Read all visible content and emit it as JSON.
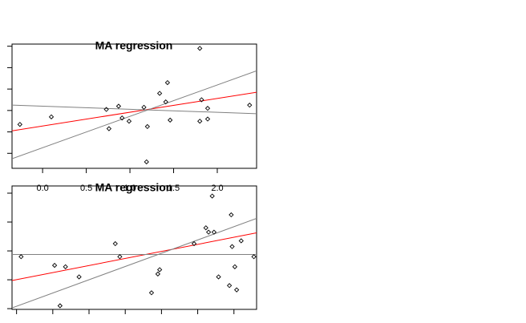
{
  "chart_data": [
    {
      "type": "scatter",
      "title": "MA regression",
      "xlabel": "",
      "ylabel": "",
      "xlim": [
        -0.35,
        2.45
      ],
      "ylim": [
        -0.27,
        0.31
      ],
      "x_ticks": [
        0.0,
        0.5,
        1.0,
        1.5,
        2.0
      ],
      "x_tick_labels": [
        "0.0",
        "0.5",
        "1.0",
        "1.5",
        "2.0"
      ],
      "y_ticks": [
        -0.2,
        -0.1,
        0.0,
        0.1,
        0.2,
        0.3
      ],
      "grid": false,
      "legend": "none",
      "points": {
        "x": [
          -0.26,
          0.1,
          0.73,
          0.76,
          0.87,
          0.91,
          0.99,
          1.16,
          1.2,
          1.19,
          1.34,
          1.41,
          1.43,
          1.46,
          1.8,
          1.82,
          1.8,
          1.89,
          1.89,
          2.37
        ],
        "y": [
          -0.065,
          -0.03,
          0.005,
          -0.085,
          0.02,
          -0.035,
          -0.05,
          0.015,
          -0.075,
          -0.24,
          0.08,
          0.04,
          0.13,
          -0.045,
          0.29,
          0.05,
          -0.05,
          0.01,
          -0.04,
          0.025
        ]
      },
      "lines": [
        {
          "color": "#ff0000",
          "x": [
            -0.35,
            2.45
          ],
          "y": [
            -0.095,
            0.085
          ]
        },
        {
          "color": "#808080",
          "x": [
            -0.35,
            2.45
          ],
          "y": [
            -0.225,
            0.185
          ]
        },
        {
          "color": "#808080",
          "x": [
            -0.35,
            2.45
          ],
          "y": [
            0.025,
            -0.015
          ]
        }
      ]
    },
    {
      "type": "scatter",
      "title": "MA regression",
      "xlabel": "",
      "ylabel": "",
      "xlim": [
        -0.25,
        2.45
      ],
      "ylim": [
        -0.405,
        0.45
      ],
      "x_ticks": [
        -0.2,
        0.2,
        0.6,
        1.0,
        1.4,
        1.8,
        2.2
      ],
      "x_tick_labels": [],
      "y_ticks": [
        -0.4,
        -0.2,
        0.0,
        0.2,
        0.4
      ],
      "grid": false,
      "legend": "none",
      "points": {
        "x": [
          -0.15,
          0.22,
          0.28,
          0.34,
          0.49,
          0.89,
          0.94,
          1.29,
          1.36,
          1.38,
          1.76,
          1.89,
          1.92,
          1.96,
          1.98,
          2.03,
          2.15,
          2.17,
          2.18,
          2.21,
          2.23,
          2.28,
          2.42
        ],
        "y": [
          -0.04,
          -0.1,
          -0.38,
          -0.11,
          -0.18,
          0.05,
          -0.04,
          -0.29,
          -0.16,
          -0.13,
          0.05,
          0.16,
          0.13,
          0.38,
          0.13,
          -0.18,
          -0.24,
          0.25,
          0.03,
          -0.11,
          -0.27,
          0.07,
          -0.04
        ]
      },
      "lines": [
        {
          "color": "#ff0000",
          "x": [
            -0.25,
            2.45
          ],
          "y": [
            -0.205,
            0.125
          ]
        },
        {
          "color": "#808080",
          "x": [
            -0.25,
            2.45
          ],
          "y": [
            -0.395,
            0.225
          ]
        },
        {
          "color": "#808080",
          "x": [
            -0.25,
            2.45
          ],
          "y": [
            -0.025,
            -0.025
          ]
        }
      ]
    }
  ]
}
